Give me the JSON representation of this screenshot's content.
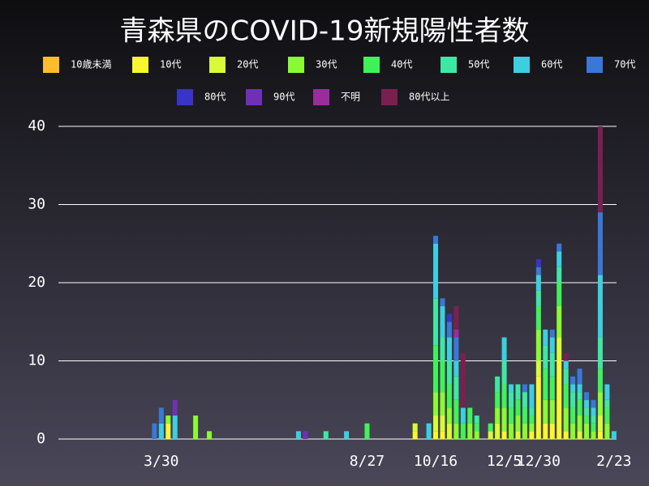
{
  "chart_data": {
    "type": "stacked-bar",
    "title": "青森県のCOVID-19新規陽性者数",
    "categories": [
      null,
      null,
      null,
      null,
      null,
      null,
      null,
      null,
      null,
      null,
      null,
      null,
      null,
      null,
      null,
      "3/30",
      null,
      null,
      null,
      null,
      null,
      null,
      null,
      null,
      null,
      null,
      null,
      null,
      null,
      null,
      null,
      null,
      null,
      null,
      null,
      null,
      null,
      null,
      null,
      null,
      null,
      null,
      null,
      null,
      null,
      "8/27",
      null,
      null,
      null,
      null,
      null,
      null,
      null,
      null,
      null,
      "10/16",
      null,
      null,
      null,
      null,
      null,
      null,
      null,
      null,
      null,
      "12/5",
      null,
      null,
      null,
      null,
      "12/30",
      null,
      null,
      null,
      null,
      null,
      null,
      null,
      null,
      null,
      null,
      "2/23"
    ],
    "ylim": [
      0,
      40
    ],
    "yticks": [
      0,
      10,
      20,
      30,
      40
    ],
    "grid": true,
    "series": [
      {
        "name": "10歳未満",
        "color": "#fbbd2c",
        "values": [
          0,
          0,
          0,
          0,
          0,
          0,
          0,
          0,
          0,
          0,
          0,
          0,
          0,
          0,
          0,
          0,
          0,
          0,
          0,
          0,
          0,
          0,
          0,
          0,
          0,
          0,
          0,
          0,
          0,
          0,
          0,
          0,
          0,
          0,
          0,
          0,
          0,
          0,
          0,
          0,
          0,
          0,
          0,
          0,
          0,
          0,
          0,
          0,
          0,
          0,
          0,
          0,
          0,
          0,
          0,
          0,
          0,
          0,
          0,
          0,
          0,
          0,
          0,
          0,
          0,
          0,
          0,
          0,
          0,
          0,
          0,
          0,
          0,
          0,
          0,
          0,
          0,
          0,
          0,
          0,
          0,
          0
        ]
      },
      {
        "name": "10代",
        "color": "#f8f631",
        "values": [
          0,
          0,
          0,
          0,
          0,
          0,
          0,
          0,
          0,
          0,
          0,
          0,
          0,
          0,
          0,
          0,
          2,
          0,
          0,
          0,
          0,
          0,
          0,
          0,
          0,
          0,
          0,
          0,
          0,
          0,
          0,
          0,
          0,
          0,
          0,
          0,
          0,
          0,
          0,
          0,
          0,
          0,
          0,
          0,
          0,
          0,
          0,
          0,
          0,
          0,
          0,
          0,
          1,
          0,
          0,
          1,
          1,
          0,
          0,
          0,
          0,
          0,
          0,
          0,
          0,
          1,
          0,
          0,
          0,
          1,
          8,
          2,
          2,
          10,
          1,
          0,
          0,
          0,
          0,
          1,
          0,
          0
        ]
      },
      {
        "name": "20代",
        "color": "#d9fb36",
        "values": [
          0,
          0,
          0,
          0,
          0,
          0,
          0,
          0,
          0,
          0,
          0,
          0,
          0,
          0,
          0,
          0,
          0,
          0,
          0,
          0,
          0,
          0,
          0,
          0,
          0,
          0,
          0,
          0,
          0,
          0,
          0,
          0,
          0,
          0,
          0,
          0,
          0,
          0,
          0,
          0,
          0,
          0,
          0,
          0,
          0,
          0,
          0,
          0,
          0,
          0,
          0,
          0,
          1,
          0,
          0,
          2,
          2,
          2,
          0,
          0,
          0,
          0,
          0,
          1,
          2,
          0,
          0,
          1,
          0,
          0,
          2,
          0,
          0,
          3,
          0,
          0,
          1,
          0,
          0,
          2,
          0,
          0
        ]
      },
      {
        "name": "30代",
        "color": "#8afb32",
        "values": [
          0,
          0,
          0,
          0,
          0,
          0,
          0,
          0,
          0,
          0,
          0,
          0,
          0,
          0,
          0,
          0,
          1,
          0,
          0,
          0,
          3,
          0,
          1,
          0,
          0,
          0,
          0,
          0,
          0,
          0,
          0,
          0,
          0,
          0,
          0,
          0,
          0,
          0,
          0,
          0,
          0,
          0,
          0,
          0,
          0,
          0,
          0,
          0,
          0,
          0,
          0,
          0,
          0,
          0,
          0,
          3,
          3,
          2,
          2,
          0,
          2,
          1,
          0,
          0,
          2,
          3,
          2,
          2,
          2,
          1,
          4,
          3,
          3,
          4,
          3,
          2,
          2,
          2,
          1,
          3,
          2,
          0
        ]
      },
      {
        "name": "40代",
        "color": "#40f25a",
        "values": [
          0,
          0,
          0,
          0,
          0,
          0,
          0,
          0,
          0,
          0,
          0,
          0,
          0,
          0,
          0,
          0,
          0,
          0,
          0,
          0,
          0,
          0,
          0,
          0,
          0,
          0,
          0,
          0,
          0,
          0,
          0,
          0,
          0,
          0,
          0,
          0,
          0,
          0,
          0,
          0,
          0,
          0,
          0,
          0,
          0,
          2,
          0,
          0,
          0,
          0,
          0,
          0,
          0,
          0,
          0,
          6,
          4,
          3,
          3,
          2,
          2,
          1,
          0,
          1,
          2,
          3,
          2,
          2,
          2,
          1,
          3,
          4,
          3,
          3,
          3,
          2,
          2,
          1,
          1,
          3,
          2,
          0
        ]
      },
      {
        "name": "50代",
        "color": "#3ee8a2",
        "values": [
          0,
          0,
          0,
          0,
          0,
          0,
          0,
          0,
          0,
          0,
          0,
          0,
          0,
          0,
          0,
          0,
          0,
          0,
          0,
          0,
          0,
          0,
          0,
          0,
          0,
          0,
          0,
          0,
          0,
          0,
          0,
          0,
          0,
          0,
          0,
          0,
          0,
          0,
          0,
          1,
          0,
          0,
          0,
          0,
          0,
          0,
          0,
          0,
          0,
          0,
          0,
          0,
          0,
          0,
          0,
          6,
          3,
          3,
          3,
          0,
          0,
          1,
          0,
          0,
          2,
          3,
          2,
          2,
          2,
          1,
          2,
          3,
          3,
          2,
          2,
          2,
          1,
          1,
          1,
          4,
          1,
          0
        ]
      },
      {
        "name": "60代",
        "color": "#3ccfe0",
        "values": [
          0,
          0,
          0,
          0,
          0,
          0,
          0,
          0,
          0,
          0,
          0,
          0,
          0,
          0,
          0,
          2,
          0,
          3,
          0,
          0,
          0,
          0,
          0,
          0,
          0,
          0,
          0,
          0,
          0,
          0,
          0,
          0,
          0,
          0,
          0,
          1,
          0,
          0,
          0,
          0,
          0,
          0,
          1,
          0,
          0,
          0,
          0,
          0,
          0,
          0,
          0,
          0,
          0,
          0,
          2,
          7,
          4,
          3,
          2,
          2,
          0,
          0,
          0,
          0,
          0,
          3,
          1,
          0,
          0,
          3,
          2,
          2,
          2,
          2,
          1,
          1,
          1,
          1,
          1,
          8,
          2,
          1
        ]
      },
      {
        "name": "70代",
        "color": "#3a78d6",
        "values": [
          0,
          0,
          0,
          0,
          0,
          0,
          0,
          0,
          0,
          0,
          0,
          0,
          0,
          0,
          2,
          2,
          0,
          0,
          0,
          0,
          0,
          0,
          0,
          0,
          0,
          0,
          0,
          0,
          0,
          0,
          0,
          0,
          0,
          0,
          0,
          0,
          0,
          0,
          0,
          0,
          0,
          0,
          0,
          0,
          0,
          0,
          0,
          0,
          0,
          0,
          0,
          0,
          0,
          0,
          0,
          1,
          1,
          2,
          3,
          0,
          0,
          0,
          0,
          0,
          0,
          0,
          0,
          0,
          1,
          0,
          1,
          0,
          1,
          1,
          0,
          1,
          2,
          1,
          1,
          8,
          0,
          0
        ]
      },
      {
        "name": "80代",
        "color": "#3a34c6",
        "values": [
          0,
          0,
          0,
          0,
          0,
          0,
          0,
          0,
          0,
          0,
          0,
          0,
          0,
          0,
          0,
          0,
          0,
          0,
          0,
          0,
          0,
          0,
          0,
          0,
          0,
          0,
          0,
          0,
          0,
          0,
          0,
          0,
          0,
          0,
          0,
          0,
          0,
          0,
          0,
          0,
          0,
          0,
          0,
          0,
          0,
          0,
          0,
          0,
          0,
          0,
          0,
          0,
          0,
          0,
          0,
          0,
          0,
          1,
          0,
          0,
          0,
          0,
          0,
          0,
          0,
          0,
          0,
          0,
          0,
          0,
          1,
          0,
          0,
          0,
          0,
          0,
          0,
          0,
          0,
          0,
          0,
          0
        ]
      },
      {
        "name": "90代",
        "color": "#7030b6",
        "values": [
          0,
          0,
          0,
          0,
          0,
          0,
          0,
          0,
          0,
          0,
          0,
          0,
          0,
          0,
          0,
          0,
          0,
          2,
          0,
          0,
          0,
          0,
          0,
          0,
          0,
          0,
          0,
          0,
          0,
          0,
          0,
          0,
          0,
          0,
          0,
          0,
          1,
          0,
          0,
          0,
          0,
          0,
          0,
          0,
          0,
          0,
          0,
          0,
          0,
          0,
          0,
          0,
          0,
          0,
          0,
          0,
          0,
          0,
          0,
          0,
          0,
          0,
          0,
          0,
          0,
          0,
          0,
          0,
          0,
          0,
          0,
          0,
          0,
          0,
          0,
          0,
          0,
          0,
          0,
          0,
          0,
          0
        ]
      },
      {
        "name": "不明",
        "color": "#9a2d9c",
        "values": [
          0,
          0,
          0,
          0,
          0,
          0,
          0,
          0,
          0,
          0,
          0,
          0,
          0,
          0,
          0,
          0,
          0,
          0,
          0,
          0,
          0,
          0,
          0,
          0,
          0,
          0,
          0,
          0,
          0,
          0,
          0,
          0,
          0,
          0,
          0,
          0,
          0,
          0,
          0,
          0,
          0,
          0,
          0,
          0,
          0,
          0,
          0,
          0,
          0,
          0,
          0,
          0,
          0,
          0,
          0,
          0,
          0,
          0,
          1,
          0,
          0,
          0,
          0,
          0,
          0,
          0,
          0,
          0,
          0,
          0,
          0,
          0,
          0,
          0,
          0,
          0,
          0,
          0,
          0,
          0,
          0,
          0
        ]
      },
      {
        "name": "80代以上",
        "color": "#7a2050",
        "values": [
          0,
          0,
          0,
          0,
          0,
          0,
          0,
          0,
          0,
          0,
          0,
          0,
          0,
          0,
          0,
          0,
          0,
          0,
          0,
          0,
          0,
          0,
          0,
          0,
          0,
          0,
          0,
          0,
          0,
          0,
          0,
          0,
          0,
          0,
          0,
          0,
          0,
          0,
          0,
          0,
          0,
          0,
          0,
          0,
          0,
          0,
          0,
          0,
          0,
          0,
          0,
          0,
          0,
          0,
          0,
          0,
          0,
          0,
          3,
          7,
          0,
          0,
          0,
          0,
          0,
          0,
          0,
          0,
          0,
          0,
          0,
          0,
          0,
          0,
          1,
          0,
          0,
          0,
          0,
          11,
          0,
          0
        ]
      }
    ]
  }
}
